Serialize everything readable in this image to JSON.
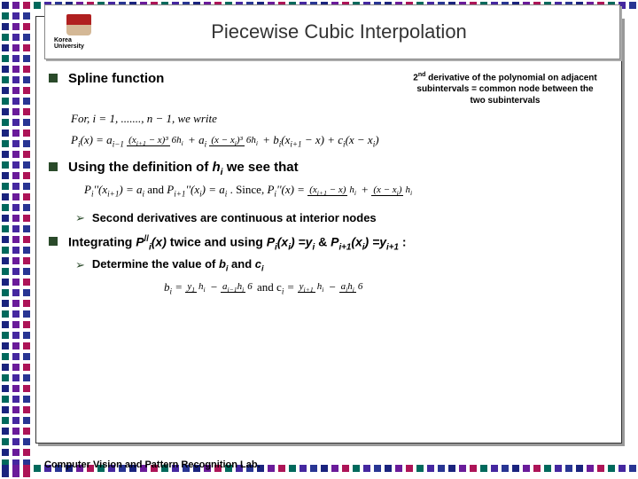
{
  "title": "Piecewise Cubic Interpolation",
  "logo_text": "Korea University",
  "bullets": {
    "b1": "Spline function",
    "b1_note_l1": "2",
    "b1_note_l2": "nd",
    "b1_note_l3": " derivative of the polynomial on adjacent",
    "b1_note_l4": "subintervals = common node between the",
    "b1_note_l5": "two subintervals",
    "b2_pre": "Using the definition of ",
    "b2_var": "h",
    "b2_sub": "i",
    "b2_post": " we see that",
    "sub1": "Second derivatives are continuous at interior nodes",
    "b3_p1": "Integrating ",
    "b3_p2": "P",
    "b3_p2sup": "//",
    "b3_p2sub": "i",
    "b3_p3": "(x)",
    "b3_p4": " twice and using ",
    "b3_p5": "P",
    "b3_p5sub": "i",
    "b3_p6": "(x",
    "b3_p6sub": "i",
    "b3_p7": ") =y",
    "b3_p7sub": "i",
    "b3_p8": " & ",
    "b3_p9": "P",
    "b3_p9sub": "i+1",
    "b3_p10": "(x",
    "b3_p10sub": "i",
    "b3_p11": ") =y",
    "b3_p11sub": "i+1",
    "b3_p12": " :",
    "sub2_p1": "Determine the value of ",
    "sub2_p2": "b",
    "sub2_p2sub": "i",
    "sub2_p3": " and ",
    "sub2_p4": "c",
    "sub2_p4sub": "i"
  },
  "formulas": {
    "f1": "For, i = 1, ......., n − 1, we write",
    "f2a": "P",
    "f2b": "i",
    "f2c": "(x) = a",
    "f2d": "i−1",
    "f2e_top": "(x",
    "f2e_sub": "i+1",
    "f2e_end": " − x)³",
    "f2f": "6h",
    "f2g": " + a",
    "f2h_top": "(x − x",
    "f2h_end": ")³",
    "f2i": " + b",
    "f2j": "(x",
    "f2k": " − x) + c",
    "f2l": "(x − x",
    "f2m": ")",
    "f3a": "P",
    "f3b": "i",
    "f3c": "''(x",
    "f3d": "i+1",
    "f3e": ") = a",
    "f3f": " and ",
    "f3g": "''(x",
    "f3h": ") = a",
    "f3i": ".      Since, ",
    "f3j": "''(x) = ",
    "f3k_top1": "(x",
    "f3k_top2": " − x)",
    "f3k_plus": " + ",
    "f3k_top3": "(x − x",
    "f3k_top4": ")",
    "f4a": "b",
    "f4b": " = ",
    "f4c_top": "y",
    "f4c_sub": "1",
    "f4d": " − ",
    "f4e_top": "a",
    "f4e_sub": "i−1",
    "f4e_h": "h",
    "f4f": "6",
    "f4g": "  and  c",
    "f4h_top": "y",
    "f4h_sub": "i+1",
    "f4i_top": "a",
    "f4i_h": "h"
  },
  "footer": "Computer Vision and Pattern Recognition Lab.",
  "colors": {
    "border_colors": [
      "#1a237e",
      "#6a1b9a",
      "#ad1457",
      "#00695c",
      "#4527a0",
      "#283593"
    ],
    "bullet_green": "#2a4a2a"
  }
}
